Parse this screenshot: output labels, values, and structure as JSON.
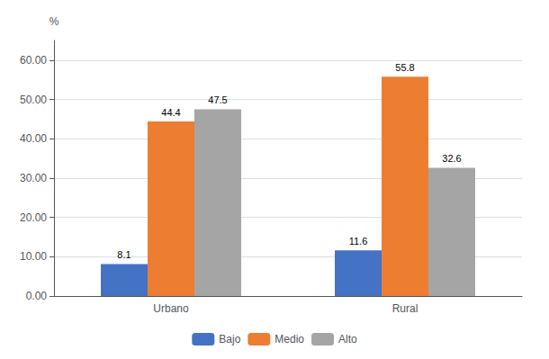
{
  "chart_data": {
    "type": "bar",
    "categories": [
      "Urbano",
      "Rural"
    ],
    "series": [
      {
        "name": "Bajo",
        "color": "#4472C4",
        "values": [
          8.1,
          11.6
        ]
      },
      {
        "name": "Medio",
        "color": "#ED7D31",
        "values": [
          44.4,
          55.8
        ]
      },
      {
        "name": "Alto",
        "color": "#A5A5A5",
        "values": [
          47.5,
          32.6
        ]
      }
    ],
    "ylabel": "%",
    "ylim": [
      0,
      65
    ],
    "yticks": [
      {
        "value": 0,
        "label": "0.00"
      },
      {
        "value": 10,
        "label": "10.00"
      },
      {
        "value": 20,
        "label": "20.00"
      },
      {
        "value": 30,
        "label": "30.00"
      },
      {
        "value": 40,
        "label": "40.00"
      },
      {
        "value": 50,
        "label": "50.00"
      },
      {
        "value": 60,
        "label": "60.00"
      }
    ],
    "grid": true,
    "legend": "bottom",
    "data_labels": true
  }
}
